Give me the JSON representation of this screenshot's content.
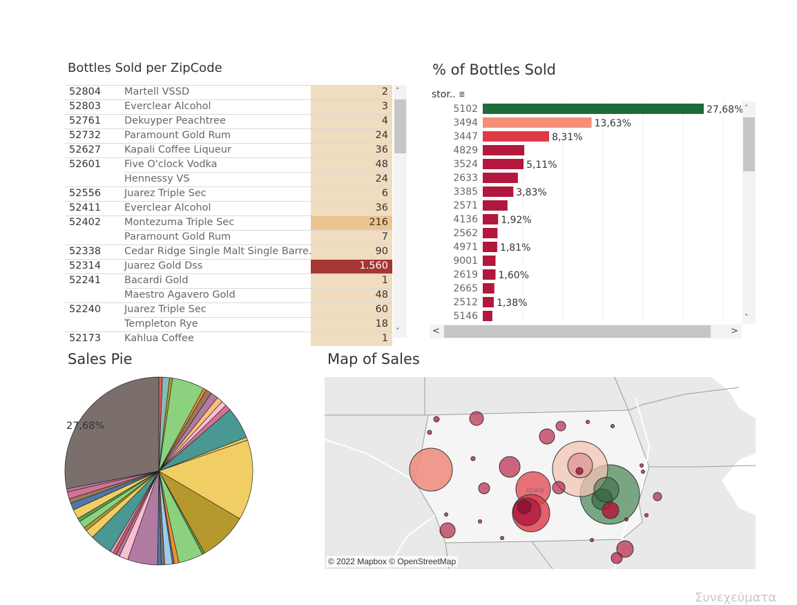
{
  "titles": {
    "table": "Bottles Sold per ZipCode",
    "bars": "% of Bottles Sold",
    "pie": "Sales Pie",
    "map": "Map of Sales"
  },
  "colors": {
    "table_fill_low": "#f0dcbf",
    "table_fill_mid": "#edc48f",
    "table_fill_high": "#a63633",
    "bar_top": "#1f6b3a",
    "bar_second": "#f4907a",
    "bar_third": "#e03a45",
    "bar_default": "#b3173e"
  },
  "table": {
    "rows": [
      {
        "zip": "52804",
        "product": "Martell VSSD",
        "value": "2",
        "level": "low"
      },
      {
        "zip": "52803",
        "product": "Everclear Alcohol",
        "value": "3",
        "level": "low"
      },
      {
        "zip": "52761",
        "product": "Dekuyper Peachtree",
        "value": "4",
        "level": "low"
      },
      {
        "zip": "52732",
        "product": "Paramount Gold Rum",
        "value": "24",
        "level": "low"
      },
      {
        "zip": "52627",
        "product": "Kapali Coffee Liqueur",
        "value": "36",
        "level": "low"
      },
      {
        "zip": "52601",
        "product": "Five O'clock Vodka",
        "value": "48",
        "level": "low"
      },
      {
        "zip": "",
        "product": "Hennessy VS",
        "value": "24",
        "level": "low"
      },
      {
        "zip": "52556",
        "product": "Juarez Triple Sec",
        "value": "6",
        "level": "low"
      },
      {
        "zip": "52411",
        "product": "Everclear Alcohol",
        "value": "36",
        "level": "low"
      },
      {
        "zip": "52402",
        "product": "Montezuma Triple Sec",
        "value": "216",
        "level": "mid"
      },
      {
        "zip": "",
        "product": "Paramount Gold Rum",
        "value": "7",
        "level": "low"
      },
      {
        "zip": "52338",
        "product": "Cedar Ridge Single Malt Single Barre..",
        "value": "90",
        "level": "low"
      },
      {
        "zip": "52314",
        "product": "Juarez Gold Dss",
        "value": "1.560",
        "level": "high"
      },
      {
        "zip": "52241",
        "product": "Bacardi Gold",
        "value": "1",
        "level": "low"
      },
      {
        "zip": "",
        "product": "Maestro Agavero Gold",
        "value": "48",
        "level": "low"
      },
      {
        "zip": "52240",
        "product": "Juarez Triple Sec",
        "value": "60",
        "level": "low"
      },
      {
        "zip": "",
        "product": "Templeton Rye",
        "value": "18",
        "level": "low"
      },
      {
        "zip": "52173",
        "product": "Kahlua Coffee",
        "value": "1",
        "level": "low"
      }
    ]
  },
  "bars_header": "stor..",
  "chart_data": [
    {
      "type": "bar",
      "title": "% of Bottles Sold",
      "xlabel": "",
      "ylabel": "stor..",
      "orientation": "horizontal",
      "xlim": [
        0,
        30
      ],
      "categories": [
        "5102",
        "3494",
        "3447",
        "4829",
        "3524",
        "2633",
        "3385",
        "2571",
        "4136",
        "2562",
        "4971",
        "9001",
        "2619",
        "2665",
        "2512",
        "5146"
      ],
      "values": [
        27.68,
        13.63,
        8.31,
        5.2,
        5.11,
        4.4,
        3.83,
        3.1,
        1.92,
        1.85,
        1.81,
        1.6,
        1.6,
        1.45,
        1.38,
        1.2
      ],
      "labels": [
        "27,68%",
        "13,63%",
        "8,31%",
        "",
        "5,11%",
        "",
        "3,83%",
        "",
        "1,92%",
        "",
        "1,81%",
        "",
        "1,60%",
        "",
        "1,38%",
        ""
      ]
    },
    {
      "type": "pie",
      "title": "Sales Pie",
      "label": "27,68%",
      "slices": [
        {
          "value": 27.68,
          "color": "#7a6f6b"
        },
        {
          "value": 0.6,
          "color": "#e15759"
        },
        {
          "value": 1.2,
          "color": "#86bcb6"
        },
        {
          "value": 0.5,
          "color": "#b6992d"
        },
        {
          "value": 5.5,
          "color": "#8cd17d"
        },
        {
          "value": 0.5,
          "color": "#f28e2b"
        },
        {
          "value": 1.0,
          "color": "#9d7660"
        },
        {
          "value": 1.3,
          "color": "#b07aa1"
        },
        {
          "value": 1.0,
          "color": "#ffbe7d"
        },
        {
          "value": 0.9,
          "color": "#fabfd2"
        },
        {
          "value": 1.0,
          "color": "#d37295"
        },
        {
          "value": 5.4,
          "color": "#499894"
        },
        {
          "value": 0.5,
          "color": "#f1ce63"
        },
        {
          "value": 13.63,
          "color": "#f1ce63"
        },
        {
          "value": 8.31,
          "color": "#b6992d"
        },
        {
          "value": 0.4,
          "color": "#59a14f"
        },
        {
          "value": 4.2,
          "color": "#8cd17d"
        },
        {
          "value": 0.8,
          "color": "#f28e2b"
        },
        {
          "value": 0.3,
          "color": "#4e79a7"
        },
        {
          "value": 1.3,
          "color": "#a0cbe8"
        },
        {
          "value": 0.6,
          "color": "#79706e"
        },
        {
          "value": 0.6,
          "color": "#4e79a7"
        },
        {
          "value": 5.11,
          "color": "#b07aa1"
        },
        {
          "value": 1.5,
          "color": "#fabfd2"
        },
        {
          "value": 0.6,
          "color": "#b07aa1"
        },
        {
          "value": 0.6,
          "color": "#e15759"
        },
        {
          "value": 0.5,
          "color": "#d4a6c8"
        },
        {
          "value": 3.83,
          "color": "#499894"
        },
        {
          "value": 1.5,
          "color": "#f1ce63"
        },
        {
          "value": 0.6,
          "color": "#b6992d"
        },
        {
          "value": 1.3,
          "color": "#8cd17d"
        },
        {
          "value": 0.6,
          "color": "#59a14f"
        },
        {
          "value": 1.6,
          "color": "#f1ce63"
        },
        {
          "value": 1.2,
          "color": "#4e79a7"
        },
        {
          "value": 0.8,
          "color": "#9d7660"
        },
        {
          "value": 1.2,
          "color": "#d37295"
        },
        {
          "value": 0.5,
          "color": "#b07aa1"
        }
      ]
    }
  ],
  "map": {
    "label_iowa": "Iowa",
    "attribution": "© 2022 Mapbox © OpenStreetMap"
  },
  "footer_hint": "Συνεχεύματα"
}
